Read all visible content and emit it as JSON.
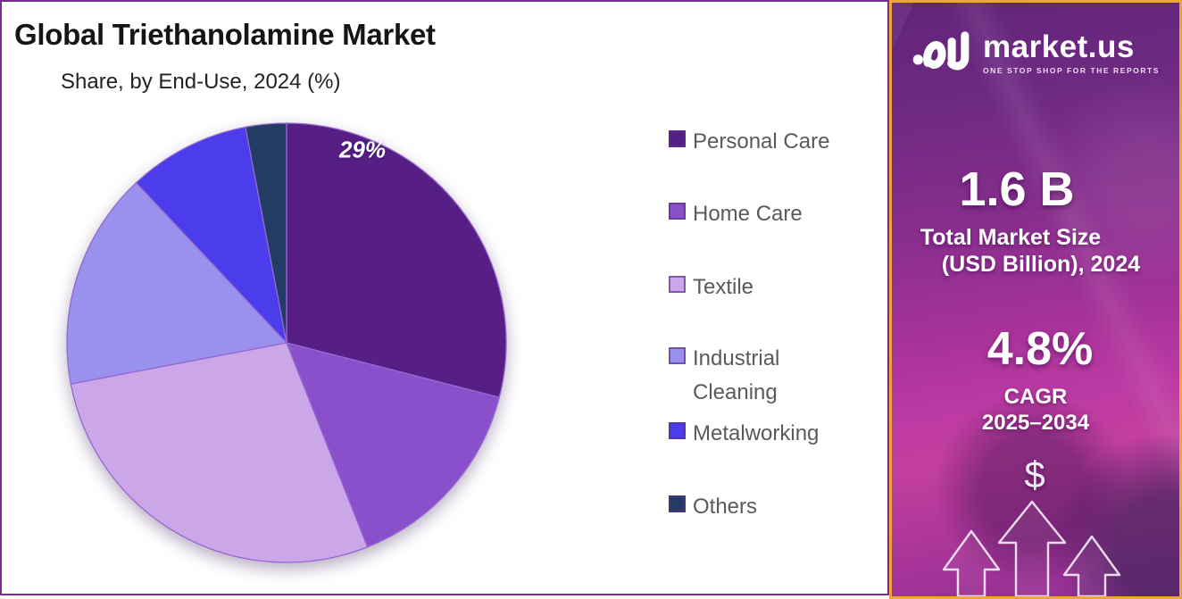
{
  "header": {
    "title": "Global Triethanolamine Market",
    "subtitle": "Share, by End-Use, 2024 (%)"
  },
  "chart_data": {
    "type": "pie",
    "title": "Global Triethanolamine Market",
    "subtitle": "Share, by End-Use, 2024 (%)",
    "unit": "%",
    "categories": [
      "Personal Care",
      "Home Care",
      "Textile",
      "Industrial Cleaning",
      "Metalworking",
      "Others"
    ],
    "values": [
      29,
      15,
      28,
      16,
      9,
      3
    ],
    "colors": [
      "#571E86",
      "#8A50CC",
      "#CBA6E8",
      "#9A91EE",
      "#4B3CEC",
      "#233C63"
    ],
    "data_labels": [
      "29%",
      "",
      "",
      "",
      "",
      ""
    ],
    "start_angle_deg": 0,
    "direction": "clockwise",
    "legend_position": "right",
    "slice_stroke_color": "#9468CF"
  },
  "sidebar": {
    "brand": "market.us",
    "tagline": "ONE STOP SHOP FOR THE REPORTS",
    "market_size_value": "1.6 B",
    "market_size_label_line1": "Total Market Size",
    "market_size_label_line2": "(USD Billion), 2024",
    "cagr_value": "4.8%",
    "cagr_label": "CAGR",
    "cagr_period": "2025–2034",
    "dollar_symbol": "$",
    "accent_border_color": "#EDA63D"
  },
  "panel_border_color": "#7B2A8E"
}
